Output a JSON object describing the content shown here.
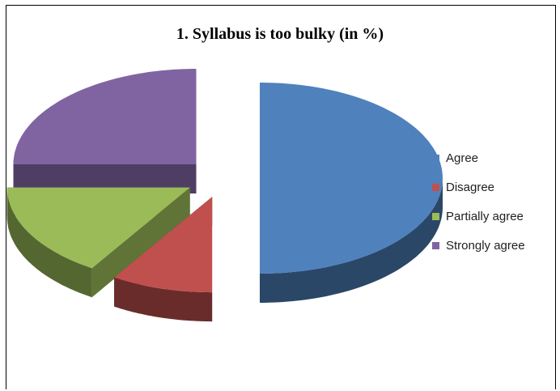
{
  "chart_data": {
    "type": "pie",
    "title": "1. Syllabus is too bulky (in %)",
    "categories": [
      "Agree",
      "Disagree",
      "Partially agree",
      "Strongly agree"
    ],
    "values": [
      50,
      9,
      16,
      25
    ],
    "colors": [
      "#4f81bd",
      "#c0504d",
      "#9bbb59",
      "#8064a2"
    ],
    "legend_position": "right"
  }
}
